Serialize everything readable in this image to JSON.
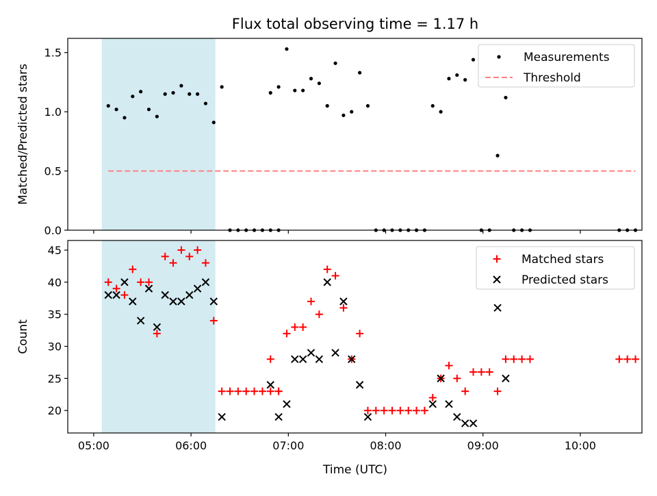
{
  "figure": {
    "title": "Flux total observing time = 1.17 h",
    "xlabel": "Time (UTC)",
    "x_ticks": [
      "05:00",
      "06:00",
      "07:00",
      "08:00",
      "09:00",
      "10:00"
    ],
    "x_tick_minutes": [
      300,
      360,
      420,
      480,
      540,
      600
    ],
    "xlim_minutes": [
      284,
      638
    ],
    "highlight_span_minutes": [
      305,
      375
    ],
    "colors": {
      "highlight": "#add8e6",
      "measure": "#000000",
      "threshold": "#ff7f7f",
      "matched": "#ff0000",
      "predicted": "#000000"
    }
  },
  "chart_data": [
    {
      "type": "scatter",
      "ylabel": "Matched/Predicted stars",
      "ylim": [
        0,
        1.62
      ],
      "y_ticks": [
        "0.0",
        "0.5",
        "1.0",
        "1.5"
      ],
      "y_tick_values": [
        0,
        0.5,
        1.0,
        1.5
      ],
      "legend": "top-right",
      "series": [
        {
          "name": "Measurements",
          "marker": "dot",
          "points": [
            [
              309,
              1.05
            ],
            [
              314,
              1.02
            ],
            [
              319,
              0.95
            ],
            [
              324,
              1.13
            ],
            [
              329,
              1.17
            ],
            [
              334,
              1.02
            ],
            [
              339,
              0.96
            ],
            [
              344,
              1.15
            ],
            [
              349,
              1.16
            ],
            [
              354,
              1.22
            ],
            [
              359,
              1.15
            ],
            [
              364,
              1.15
            ],
            [
              369,
              1.07
            ],
            [
              374,
              0.91
            ],
            [
              379,
              1.21
            ],
            [
              384,
              0
            ],
            [
              389,
              0
            ],
            [
              394,
              0
            ],
            [
              399,
              0
            ],
            [
              404,
              0
            ],
            [
              409,
              0
            ],
            [
              414,
              0
            ],
            [
              409,
              1.16
            ],
            [
              414,
              1.21
            ],
            [
              419,
              1.53
            ],
            [
              424,
              1.18
            ],
            [
              429,
              1.18
            ],
            [
              434,
              1.28
            ],
            [
              439,
              1.24
            ],
            [
              444,
              1.05
            ],
            [
              449,
              1.41
            ],
            [
              454,
              0.97
            ],
            [
              459,
              1.0
            ],
            [
              464,
              1.33
            ],
            [
              469,
              1.05
            ],
            [
              474,
              0
            ],
            [
              479,
              0
            ],
            [
              484,
              0
            ],
            [
              489,
              0
            ],
            [
              494,
              0
            ],
            [
              499,
              0
            ],
            [
              504,
              0
            ],
            [
              509,
              1.05
            ],
            [
              514,
              1.0
            ],
            [
              519,
              1.28
            ],
            [
              524,
              1.31
            ],
            [
              529,
              1.27
            ],
            [
              534,
              1.44
            ],
            [
              539,
              0
            ],
            [
              544,
              0
            ],
            [
              549,
              0.63
            ],
            [
              554,
              1.12
            ],
            [
              559,
              0
            ],
            [
              564,
              0
            ],
            [
              569,
              0
            ],
            [
              624,
              0
            ],
            [
              629,
              0
            ],
            [
              634,
              0
            ]
          ]
        },
        {
          "name": "Threshold",
          "style": "dashed",
          "points": [
            [
              309,
              0.5
            ],
            [
              634,
              0.5
            ]
          ]
        }
      ]
    },
    {
      "type": "scatter",
      "ylabel": "Count",
      "ylim": [
        16.5,
        46.5
      ],
      "y_ticks": [
        "20",
        "25",
        "30",
        "35",
        "40",
        "45"
      ],
      "y_tick_values": [
        20,
        25,
        30,
        35,
        40,
        45
      ],
      "legend": "top-right",
      "series": [
        {
          "name": "Matched stars",
          "marker": "plus",
          "points": [
            [
              309,
              40
            ],
            [
              314,
              39
            ],
            [
              319,
              38
            ],
            [
              324,
              42
            ],
            [
              329,
              40
            ],
            [
              334,
              40
            ],
            [
              339,
              32
            ],
            [
              344,
              44
            ],
            [
              349,
              43
            ],
            [
              354,
              45
            ],
            [
              359,
              44
            ],
            [
              364,
              45
            ],
            [
              369,
              43
            ],
            [
              374,
              34
            ],
            [
              379,
              23
            ],
            [
              384,
              23
            ],
            [
              389,
              23
            ],
            [
              394,
              23
            ],
            [
              399,
              23
            ],
            [
              404,
              23
            ],
            [
              409,
              23
            ],
            [
              414,
              23
            ],
            [
              409,
              28
            ],
            [
              414,
              23
            ],
            [
              419,
              32
            ],
            [
              424,
              33
            ],
            [
              429,
              33
            ],
            [
              434,
              37
            ],
            [
              439,
              35
            ],
            [
              444,
              42
            ],
            [
              449,
              41
            ],
            [
              454,
              36
            ],
            [
              459,
              28
            ],
            [
              464,
              32
            ],
            [
              469,
              20
            ],
            [
              474,
              20
            ],
            [
              479,
              20
            ],
            [
              484,
              20
            ],
            [
              489,
              20
            ],
            [
              494,
              20
            ],
            [
              499,
              20
            ],
            [
              504,
              20
            ],
            [
              509,
              22
            ],
            [
              514,
              25
            ],
            [
              519,
              27
            ],
            [
              524,
              25
            ],
            [
              529,
              23
            ],
            [
              534,
              26
            ],
            [
              539,
              26
            ],
            [
              544,
              26
            ],
            [
              549,
              23
            ],
            [
              554,
              28
            ],
            [
              559,
              28
            ],
            [
              564,
              28
            ],
            [
              569,
              28
            ],
            [
              624,
              28
            ],
            [
              629,
              28
            ],
            [
              634,
              28
            ]
          ]
        },
        {
          "name": "Predicted stars",
          "marker": "x",
          "points": [
            [
              309,
              38
            ],
            [
              314,
              38
            ],
            [
              319,
              40
            ],
            [
              324,
              37
            ],
            [
              329,
              34
            ],
            [
              334,
              39
            ],
            [
              339,
              33
            ],
            [
              344,
              38
            ],
            [
              349,
              37
            ],
            [
              354,
              37
            ],
            [
              359,
              38
            ],
            [
              364,
              39
            ],
            [
              369,
              40
            ],
            [
              374,
              37
            ],
            [
              379,
              19
            ],
            [
              409,
              24
            ],
            [
              414,
              19
            ],
            [
              419,
              21
            ],
            [
              424,
              28
            ],
            [
              429,
              28
            ],
            [
              434,
              29
            ],
            [
              439,
              28
            ],
            [
              444,
              40
            ],
            [
              449,
              29
            ],
            [
              454,
              37
            ],
            [
              459,
              28
            ],
            [
              464,
              24
            ],
            [
              469,
              19
            ],
            [
              509,
              21
            ],
            [
              514,
              25
            ],
            [
              519,
              21
            ],
            [
              524,
              19
            ],
            [
              529,
              18
            ],
            [
              534,
              18
            ],
            [
              549,
              36
            ],
            [
              554,
              25
            ]
          ]
        }
      ]
    }
  ]
}
